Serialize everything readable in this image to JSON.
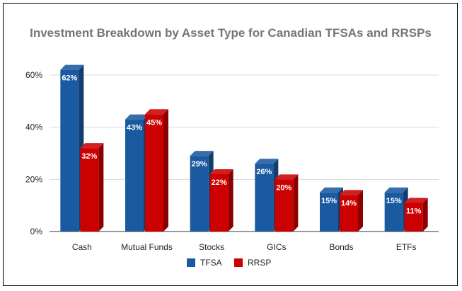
{
  "chart_data": {
    "type": "bar",
    "title": "Investment Breakdown by Asset Type for Canadian TFSAs and RRSPs",
    "categories": [
      "Cash",
      "Mutual Funds",
      "Stocks",
      "GICs",
      "Bonds",
      "ETFs"
    ],
    "series": [
      {
        "name": "TFSA",
        "color": "#1a5aa0",
        "values": [
          62,
          43,
          29,
          26,
          15,
          15
        ],
        "labels": [
          "62%",
          "43%",
          "29%",
          "26%",
          "15%",
          "15%"
        ]
      },
      {
        "name": "RRSP",
        "color": "#cc0000",
        "values": [
          32,
          45,
          22,
          20,
          14,
          11
        ],
        "labels": [
          "32%",
          "45%",
          "22%",
          "20%",
          "14%",
          "11%"
        ]
      }
    ],
    "ylim": [
      0,
      60
    ],
    "yticks": [
      0,
      20,
      40,
      60
    ],
    "ytick_labels": [
      "0%",
      "20%",
      "40%",
      "60%"
    ],
    "grid": true,
    "legend_position": "bottom",
    "style": "3d-columns"
  }
}
